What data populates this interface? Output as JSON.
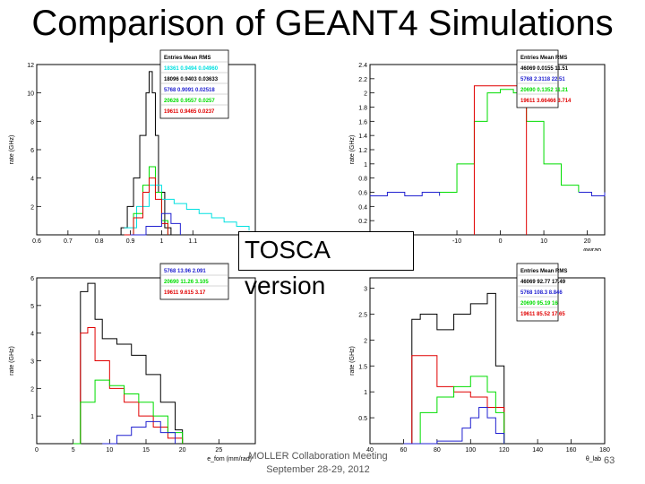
{
  "title": "Comparison of GEANT4 Simulations",
  "callout": "TOSCA version",
  "footer": {
    "line1": "MOLLER Collaboration Meeting",
    "line2": "September 28-29, 2012",
    "page": "63"
  },
  "colors": {
    "black": "#000000",
    "cyan": "#00e0e0",
    "blue": "#2020d0",
    "green": "#00dd00",
    "red": "#e00000"
  },
  "chart_data": [
    {
      "type": "line",
      "ylabel": "rate (GHz)",
      "xlabel": "",
      "xlim": [
        0.6,
        1.3
      ],
      "ylim": [
        0,
        12
      ],
      "xticks": [
        "0.6",
        "0.7",
        "0.8",
        "0.9",
        "1",
        "1.1"
      ],
      "yticks": [
        "2",
        "4",
        "6",
        "8",
        "10",
        "12"
      ],
      "legend": {
        "header": "Entries  Mean  RMS",
        "rows": [
          {
            "text": "18361  0.9494  0.04960",
            "color": "#00e0e0"
          },
          {
            "text": "18096  0.9403  0.03633",
            "color": "#000000"
          },
          {
            "text": "5768  0.9091  0.02518",
            "color": "#2020d0"
          },
          {
            "text": "20626  0.9557  0.0257",
            "color": "#00dd00"
          },
          {
            "text": "19611  0.9465  0.0237",
            "color": "#e00000"
          }
        ]
      },
      "series": [
        {
          "color": "#000000",
          "x": [
            0.85,
            0.87,
            0.89,
            0.91,
            0.93,
            0.95,
            0.96,
            0.97,
            0.98,
            0.99,
            1.01,
            1.03
          ],
          "values": [
            0,
            0.5,
            2,
            4,
            7,
            10,
            11.5,
            10,
            7,
            3,
            0.5,
            0
          ]
        },
        {
          "color": "#00e0e0",
          "x": [
            0.88,
            0.92,
            0.96,
            1.0,
            1.04,
            1.08,
            1.12,
            1.16,
            1.2,
            1.24,
            1.28
          ],
          "values": [
            0.5,
            2,
            3.5,
            2.5,
            2.2,
            1.8,
            1.5,
            1.2,
            0.9,
            0.6,
            0.3
          ]
        },
        {
          "color": "#00dd00",
          "x": [
            0.88,
            0.91,
            0.94,
            0.96,
            0.98,
            1.0,
            1.02
          ],
          "values": [
            0,
            1.5,
            3.5,
            4.8,
            3,
            1,
            0
          ]
        },
        {
          "color": "#e00000",
          "x": [
            0.88,
            0.91,
            0.94,
            0.96,
            0.98,
            1.0,
            1.02
          ],
          "values": [
            0,
            1.2,
            3,
            4,
            2.5,
            0.8,
            0
          ]
        },
        {
          "color": "#2020d0",
          "x": [
            0.9,
            0.95,
            1.0,
            1.03,
            1.06
          ],
          "values": [
            0,
            0.6,
            1.5,
            0.8,
            0
          ]
        }
      ]
    },
    {
      "type": "line",
      "ylabel": "rate (GHz)",
      "xlabel": "φwrap",
      "xlim": [
        -30,
        24
      ],
      "ylim": [
        0,
        2.4
      ],
      "xticks": [
        "-10",
        "0",
        "10",
        "20"
      ],
      "yticks": [
        "0.2",
        "0.4",
        "0.6",
        "0.8",
        "1",
        "1.2",
        "1.4",
        "1.6",
        "1.8",
        "2",
        "2.2",
        "2.4"
      ],
      "legend": {
        "header": "Entries  Mean  RMS",
        "rows": [
          {
            "text": "46069  0.0155  11.51",
            "color": "#000000"
          },
          {
            "text": "5768  2.3118  22.51",
            "color": "#2020d0"
          },
          {
            "text": "20690  0.1352  11.21",
            "color": "#00dd00"
          },
          {
            "text": "19611  3.66466  3.714",
            "color": "#e00000"
          }
        ]
      },
      "series": [
        {
          "color": "#2020d0",
          "x": [
            -30,
            -26,
            -22,
            -18,
            -14
          ],
          "values": [
            0.55,
            0.6,
            0.55,
            0.6,
            0.55
          ]
        },
        {
          "color": "#00dd00",
          "x": [
            -14,
            -10,
            -6,
            -3,
            0,
            3,
            6,
            10,
            14,
            18
          ],
          "values": [
            0.6,
            1,
            1.6,
            2,
            2.05,
            2,
            1.6,
            1,
            0.7,
            0.6
          ]
        },
        {
          "color": "#e00000",
          "x": [
            -6,
            -6,
            6,
            6
          ],
          "values": [
            0,
            2.1,
            2.1,
            0
          ]
        },
        {
          "color": "#2020d0",
          "x": [
            18,
            21,
            24
          ],
          "values": [
            0.6,
            0.55,
            0.6
          ]
        }
      ]
    },
    {
      "type": "line",
      "ylabel": "rate (GHz)",
      "xlabel": "e_fom (mm/rad)",
      "xlim": [
        0,
        30
      ],
      "ylim": [
        0,
        6
      ],
      "xticks": [
        "0",
        "5",
        "10",
        "15",
        "20",
        "25"
      ],
      "yticks": [
        "1",
        "2",
        "3",
        "4",
        "5",
        "6"
      ],
      "legend": {
        "header": "",
        "rows": [
          {
            "text": "5768  13.96  2.091",
            "color": "#2020d0"
          },
          {
            "text": "20690  11.26  3.105",
            "color": "#00dd00"
          },
          {
            "text": "19611  9.615  3.17",
            "color": "#e00000"
          }
        ]
      },
      "series": [
        {
          "color": "#000000",
          "x": [
            5,
            6,
            7,
            8,
            9,
            11,
            13,
            15,
            17,
            19,
            20
          ],
          "values": [
            0,
            5.5,
            5.8,
            4.5,
            3.8,
            3.6,
            3.2,
            2.5,
            1.5,
            0.5,
            0
          ]
        },
        {
          "color": "#e00000",
          "x": [
            5,
            6,
            7,
            8,
            10,
            12,
            14,
            16,
            18,
            20
          ],
          "values": [
            0,
            4,
            4.2,
            3,
            2,
            1.5,
            1,
            0.6,
            0.2,
            0
          ]
        },
        {
          "color": "#00dd00",
          "x": [
            5,
            6,
            8,
            10,
            12,
            14,
            16,
            18,
            20
          ],
          "values": [
            0,
            1.5,
            2.3,
            2.1,
            1.8,
            1.5,
            1,
            0.4,
            0
          ]
        },
        {
          "color": "#2020d0",
          "x": [
            9,
            11,
            13,
            15,
            17,
            19
          ],
          "values": [
            0,
            0.3,
            0.6,
            0.8,
            0.4,
            0
          ]
        }
      ]
    },
    {
      "type": "line",
      "ylabel": "rate (GHz)",
      "xlabel": "θ_lab",
      "xlim": [
        40,
        180
      ],
      "ylim": [
        0,
        3.2
      ],
      "xticks": [
        "40",
        "60",
        "80",
        "100",
        "120",
        "140",
        "160",
        "180"
      ],
      "yticks": [
        "0.5",
        "1",
        "1.5",
        "2",
        "2.5",
        "3"
      ],
      "legend": {
        "header": "Entries  Mean  RMS",
        "rows": [
          {
            "text": "46069  92.77  17.49",
            "color": "#000000"
          },
          {
            "text": "5768  108.3  8.846",
            "color": "#2020d0"
          },
          {
            "text": "20690  95.19  16",
            "color": "#00dd00"
          },
          {
            "text": "19611  85.52  17.65",
            "color": "#e00000"
          }
        ]
      },
      "series": [
        {
          "color": "#000000",
          "x": [
            60,
            65,
            70,
            80,
            90,
            100,
            110,
            115,
            120
          ],
          "values": [
            0,
            2.4,
            2.5,
            2.2,
            2.5,
            2.7,
            2.9,
            1.5,
            0
          ]
        },
        {
          "color": "#e00000",
          "x": [
            60,
            65,
            70,
            80,
            90,
            100,
            110,
            120
          ],
          "values": [
            0,
            1.7,
            1.7,
            1.1,
            1.0,
            0.9,
            0.7,
            0
          ]
        },
        {
          "color": "#00dd00",
          "x": [
            60,
            70,
            80,
            90,
            100,
            110,
            115,
            120
          ],
          "values": [
            0,
            0.6,
            0.9,
            1.1,
            1.3,
            1.0,
            0.6,
            0
          ]
        },
        {
          "color": "#2020d0",
          "x": [
            60,
            80,
            95,
            100,
            105,
            110,
            115,
            120
          ],
          "values": [
            0,
            0.05,
            0.3,
            0.5,
            0.7,
            0.5,
            0.2,
            0
          ]
        }
      ]
    }
  ]
}
